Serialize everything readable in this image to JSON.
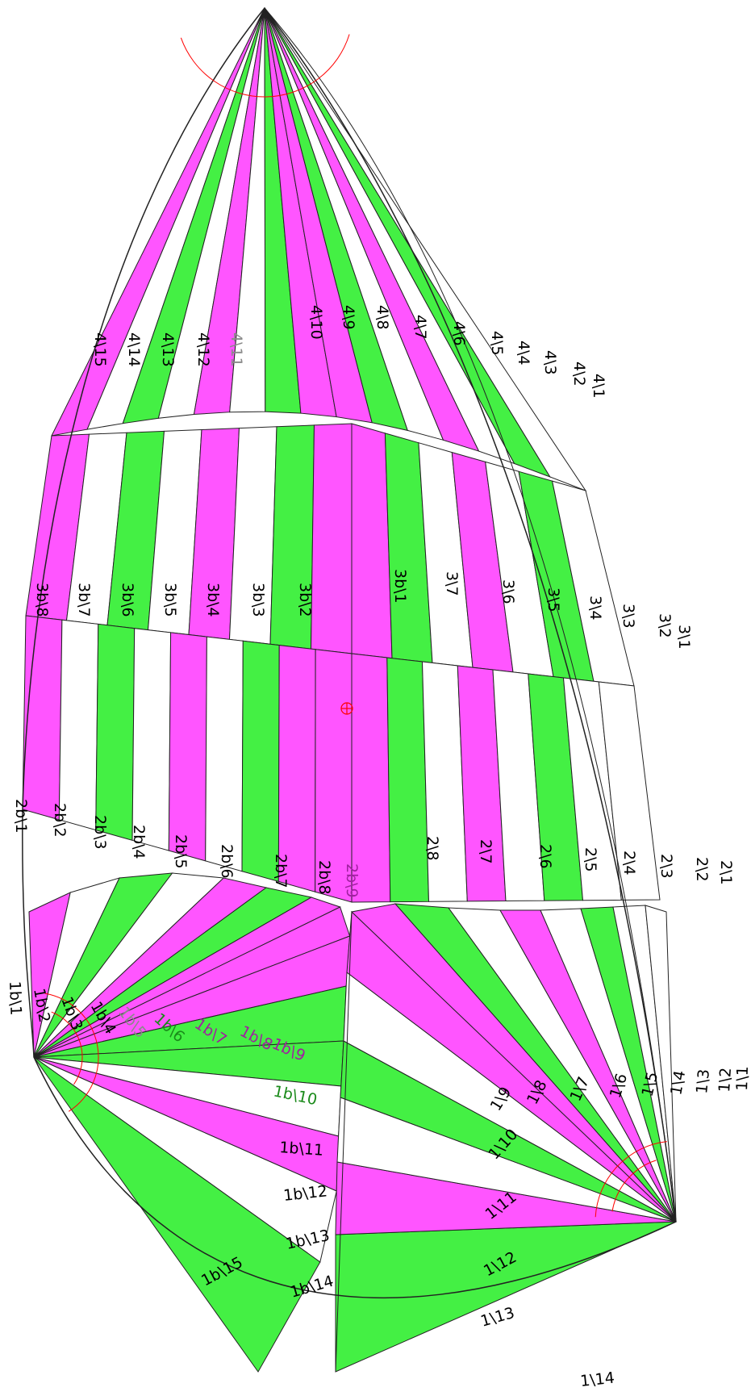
{
  "colors": {
    "magenta": "#ff55ff",
    "green": "#44f044",
    "white": "#ffffff",
    "seam": "#222222",
    "construction": "#ff0000"
  },
  "tiers": {
    "tier4": [
      "4\\15",
      "4\\14",
      "4\\13",
      "4\\12",
      "4\\11",
      "4\\10",
      "4\\9",
      "4\\8",
      "4\\7",
      "4\\6",
      "4\\5",
      "4\\4",
      "4\\3",
      "4\\2",
      "4\\1"
    ],
    "tier3b": [
      "3b\\8",
      "3b\\7",
      "3b\\6",
      "3b\\5",
      "3b\\4",
      "3b\\3",
      "3b\\2",
      "3b\\1"
    ],
    "tier3": [
      "3\\7",
      "3\\6",
      "3\\5",
      "3\\4",
      "3\\3",
      "3\\2",
      "3\\1"
    ],
    "tier2b": [
      "2b\\1",
      "2b\\2",
      "2b\\3",
      "2b\\4",
      "2b\\5",
      "2b\\6",
      "2b\\7",
      "2b\\8",
      "2b\\9"
    ],
    "tier2": [
      "2\\8",
      "2\\7",
      "2\\6",
      "2\\5",
      "2\\4",
      "2\\3",
      "2\\2",
      "2\\1"
    ],
    "tier1b": [
      "1b\\1",
      "1b\\2",
      "1b\\3",
      "1b\\4",
      "1b\\5",
      "1b\\6",
      "1b\\7",
      "1b\\8",
      "1b\\9",
      "1b\\10",
      "1b\\11",
      "1b\\12",
      "1b\\13",
      "1b\\14",
      "1b\\15"
    ],
    "tier1": [
      "1\\14",
      "1\\13",
      "1\\12",
      "1\\11",
      "1\\10",
      "1\\9",
      "1\\8",
      "1\\7",
      "1\\6",
      "1\\5",
      "1\\4",
      "1\\3",
      "1\\2",
      "1\\1"
    ]
  }
}
